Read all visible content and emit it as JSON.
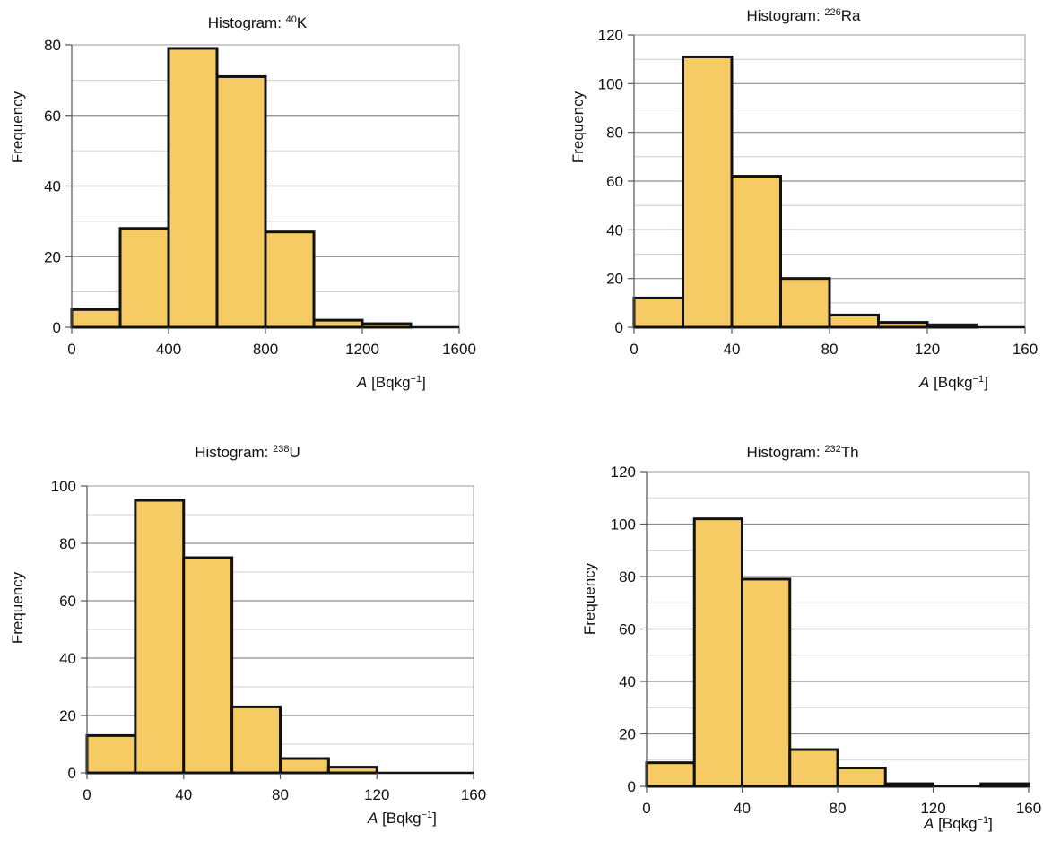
{
  "chart_data": [
    {
      "type": "bar",
      "title_prefix": "Histogram: ",
      "title_isotope_mass": "40",
      "title_isotope_symbol": "K",
      "ylabel": "Frequency",
      "xlabel_symbol": "A",
      "xlabel_unit": " [Bqkg",
      "xlabel_exp": "−1",
      "xlabel_close": "]",
      "xlim": [
        0,
        1600
      ],
      "ylim": [
        0,
        80
      ],
      "xticks": [
        0,
        400,
        800,
        1200,
        1600
      ],
      "yticks": [
        0,
        20,
        40,
        60,
        80
      ],
      "minor_grid_step": 10,
      "bin_edges": [
        0,
        200,
        400,
        600,
        800,
        1000,
        1200,
        1400,
        1600
      ],
      "values": [
        5,
        28,
        79,
        71,
        27,
        2,
        1,
        0
      ],
      "bar_color": "#f7cb63",
      "grid": true
    },
    {
      "type": "bar",
      "title_prefix": "Histogram: ",
      "title_isotope_mass": "226",
      "title_isotope_symbol": "Ra",
      "ylabel": "Frequency",
      "xlabel_symbol": "A",
      "xlabel_unit": " [Bqkg",
      "xlabel_exp": "−1",
      "xlabel_close": "]",
      "xlim": [
        0,
        160
      ],
      "ylim": [
        0,
        120
      ],
      "xticks": [
        0,
        40,
        80,
        120,
        160
      ],
      "yticks": [
        0,
        20,
        40,
        60,
        80,
        100,
        120
      ],
      "minor_grid_step": 10,
      "bin_edges": [
        0,
        20,
        40,
        60,
        80,
        100,
        120,
        140,
        160
      ],
      "values": [
        12,
        111,
        62,
        20,
        5,
        2,
        1,
        0
      ],
      "bar_color": "#f7cb63",
      "grid": true
    },
    {
      "type": "bar",
      "title_prefix": "Histogram: ",
      "title_isotope_mass": "238",
      "title_isotope_symbol": "U",
      "ylabel": "Frequency",
      "xlabel_symbol": "A",
      "xlabel_unit": " [Bqkg",
      "xlabel_exp": "−1",
      "xlabel_close": "]",
      "xlim": [
        0,
        160
      ],
      "ylim": [
        0,
        100
      ],
      "xticks": [
        0,
        40,
        80,
        120,
        160
      ],
      "yticks": [
        0,
        20,
        40,
        60,
        80,
        100
      ],
      "minor_grid_step": 10,
      "bin_edges": [
        0,
        20,
        40,
        60,
        80,
        100,
        120,
        140,
        160
      ],
      "values": [
        13,
        95,
        75,
        23,
        5,
        2,
        0,
        0
      ],
      "bar_color": "#f7cb63",
      "grid": true
    },
    {
      "type": "bar",
      "title_prefix": "Histogram: ",
      "title_isotope_mass": "232",
      "title_isotope_symbol": "Th",
      "ylabel": "Frequency",
      "xlabel_symbol": "A",
      "xlabel_unit": " [Bqkg",
      "xlabel_exp": "−1",
      "xlabel_close": "]",
      "xlim": [
        0,
        160
      ],
      "ylim": [
        0,
        120
      ],
      "xticks": [
        0,
        40,
        80,
        120,
        160
      ],
      "yticks": [
        0,
        20,
        40,
        60,
        80,
        100,
        120
      ],
      "minor_grid_step": 10,
      "bin_edges": [
        0,
        20,
        40,
        60,
        80,
        100,
        120,
        140,
        160
      ],
      "values": [
        9,
        102,
        79,
        14,
        7,
        1,
        0,
        1
      ],
      "bar_color": "#f7cb63",
      "grid": true
    }
  ]
}
